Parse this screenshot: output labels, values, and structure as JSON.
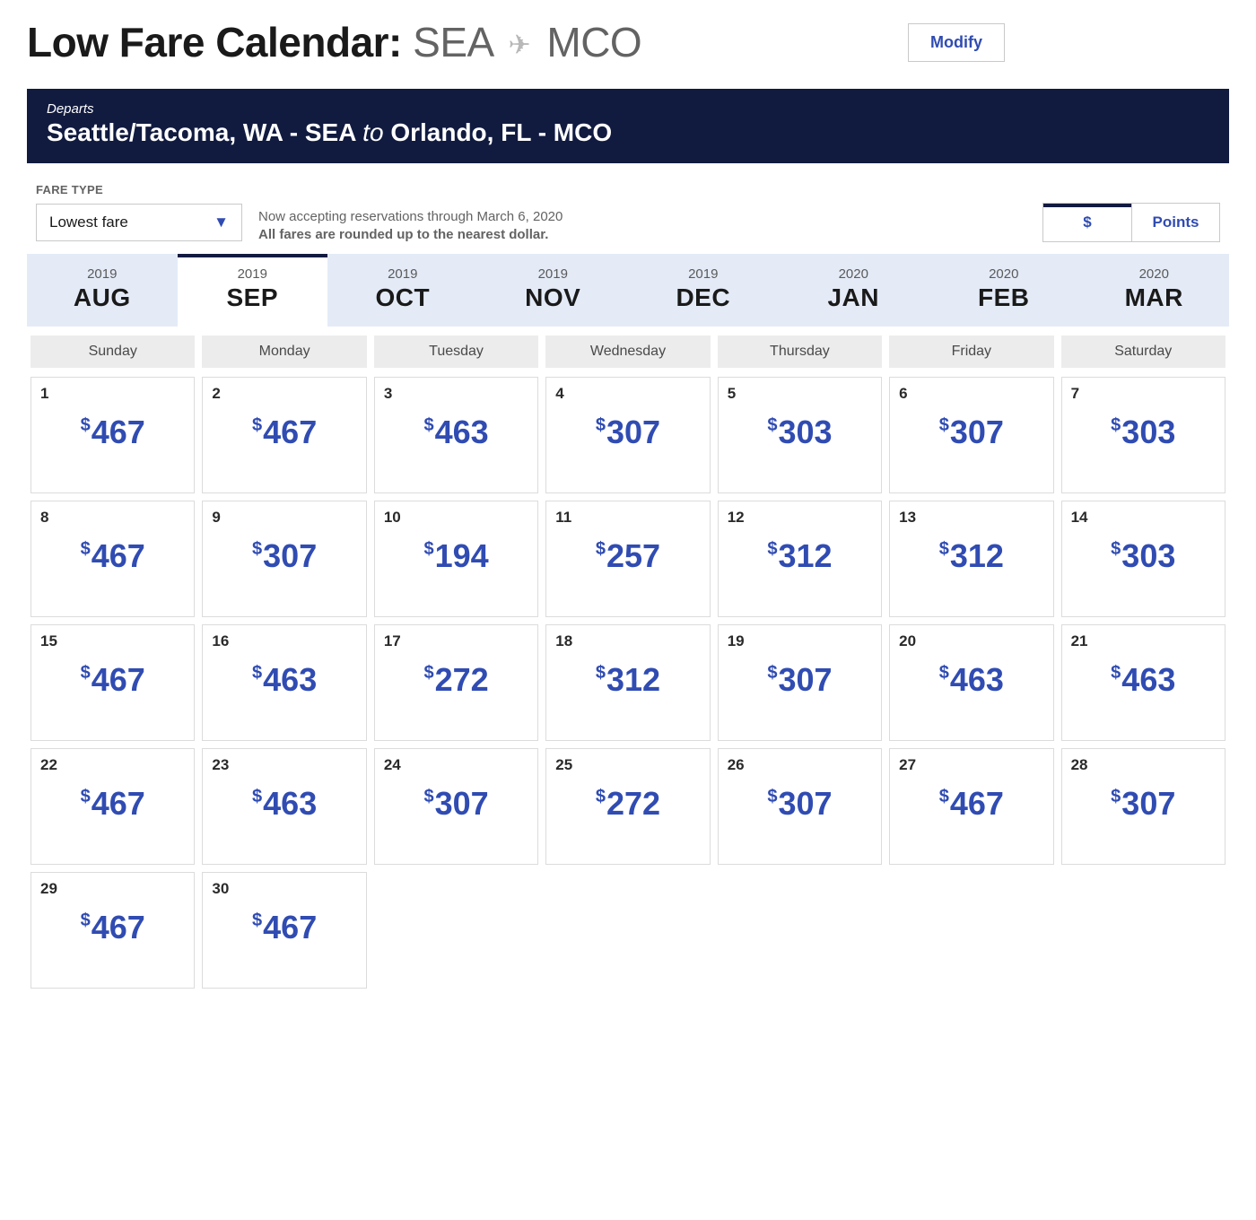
{
  "header": {
    "title_prefix": "Low Fare Calendar:",
    "origin_code": "SEA",
    "dest_code": "MCO",
    "modify_label": "Modify"
  },
  "banner": {
    "departs_label": "Departs",
    "origin_full": "Seattle/Tacoma, WA - SEA",
    "to_word": "to",
    "dest_full": "Orlando, FL - MCO"
  },
  "fare_type": {
    "label": "FARE TYPE",
    "selected": "Lowest fare"
  },
  "note": {
    "line1": "Now accepting reservations through March 6, 2020",
    "line2": "All fares are rounded up to the nearest dollar."
  },
  "toggle": {
    "dollars": "$",
    "points": "Points",
    "active": "dollars"
  },
  "months": [
    {
      "year": "2019",
      "mon": "AUG",
      "active": false
    },
    {
      "year": "2019",
      "mon": "SEP",
      "active": true
    },
    {
      "year": "2019",
      "mon": "OCT",
      "active": false
    },
    {
      "year": "2019",
      "mon": "NOV",
      "active": false
    },
    {
      "year": "2019",
      "mon": "DEC",
      "active": false
    },
    {
      "year": "2020",
      "mon": "JAN",
      "active": false
    },
    {
      "year": "2020",
      "mon": "FEB",
      "active": false
    },
    {
      "year": "2020",
      "mon": "MAR",
      "active": false
    }
  ],
  "weekdays": [
    "Sunday",
    "Monday",
    "Tuesday",
    "Wednesday",
    "Thursday",
    "Friday",
    "Saturday"
  ],
  "currency_symbol": "$",
  "days": [
    {
      "n": 1,
      "p": 467
    },
    {
      "n": 2,
      "p": 467
    },
    {
      "n": 3,
      "p": 463
    },
    {
      "n": 4,
      "p": 307
    },
    {
      "n": 5,
      "p": 303
    },
    {
      "n": 6,
      "p": 307
    },
    {
      "n": 7,
      "p": 303
    },
    {
      "n": 8,
      "p": 467
    },
    {
      "n": 9,
      "p": 307
    },
    {
      "n": 10,
      "p": 194
    },
    {
      "n": 11,
      "p": 257
    },
    {
      "n": 12,
      "p": 312
    },
    {
      "n": 13,
      "p": 312
    },
    {
      "n": 14,
      "p": 303
    },
    {
      "n": 15,
      "p": 467
    },
    {
      "n": 16,
      "p": 463
    },
    {
      "n": 17,
      "p": 272
    },
    {
      "n": 18,
      "p": 312
    },
    {
      "n": 19,
      "p": 307
    },
    {
      "n": 20,
      "p": 463
    },
    {
      "n": 21,
      "p": 463
    },
    {
      "n": 22,
      "p": 467
    },
    {
      "n": 23,
      "p": 463
    },
    {
      "n": 24,
      "p": 307
    },
    {
      "n": 25,
      "p": 272
    },
    {
      "n": 26,
      "p": 307
    },
    {
      "n": 27,
      "p": 467
    },
    {
      "n": 28,
      "p": 307
    },
    {
      "n": 29,
      "p": 467
    },
    {
      "n": 30,
      "p": 467
    }
  ],
  "colors": {
    "banner_bg": "#111b40",
    "price_color": "#304cb2",
    "tab_bg": "#e4ebf7",
    "weekday_bg": "#ececec",
    "border": "#dcdcdc"
  }
}
